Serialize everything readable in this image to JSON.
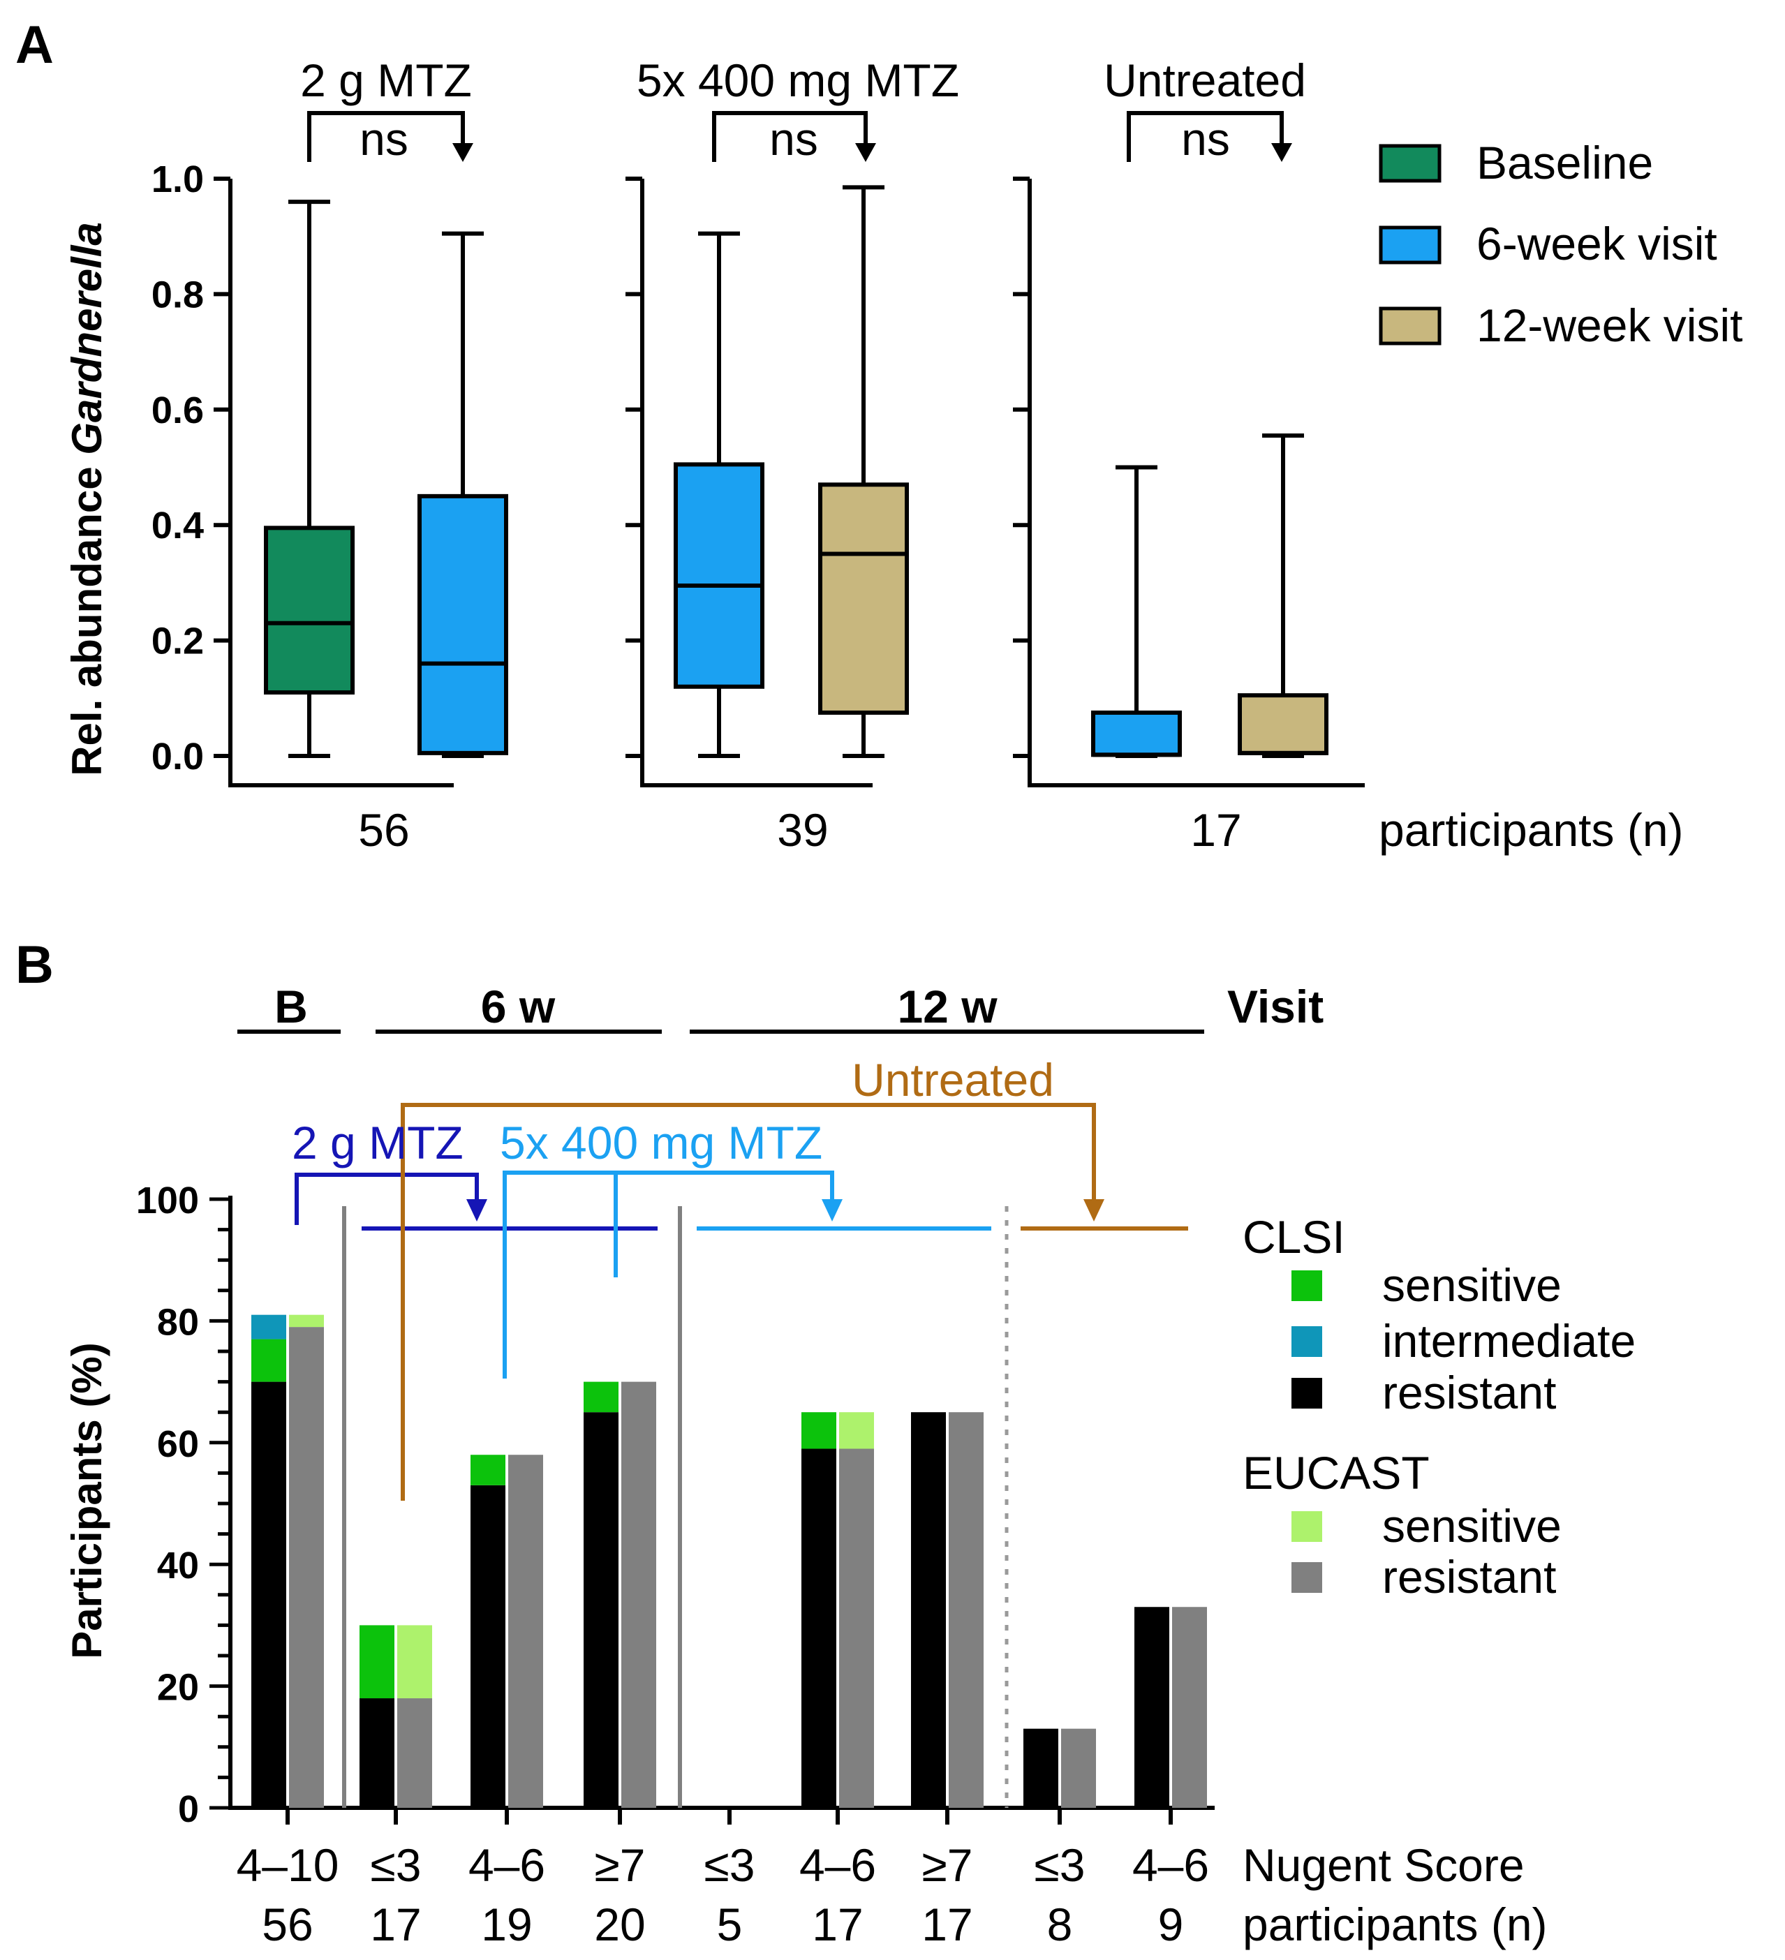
{
  "panel_a_label": "A",
  "panel_b_label": "B",
  "chart_data": [
    {
      "type": "box",
      "panel": "A",
      "ylabel_prefix": "Rel. abundance ",
      "ylabel_italic": "Gardnerella",
      "ylim": [
        0,
        1.0
      ],
      "yticks": [
        "0.0",
        "0.2",
        "0.4",
        "0.6",
        "0.8",
        "1.0"
      ],
      "groups": [
        {
          "title": "2 g MTZ",
          "comparison": "ns",
          "n": "56",
          "boxes": [
            {
              "series": "Baseline",
              "min": 0.0,
              "q1": 0.11,
              "median": 0.23,
              "q3": 0.395,
              "max": 0.96
            },
            {
              "series": "6-week visit",
              "min": 0.0,
              "q1": 0.005,
              "median": 0.16,
              "q3": 0.45,
              "max": 0.905
            }
          ]
        },
        {
          "title": "5x 400 mg MTZ",
          "comparison": "ns",
          "n": "39",
          "boxes": [
            {
              "series": "6-week visit",
              "min": 0.0,
              "q1": 0.12,
              "median": 0.295,
              "q3": 0.505,
              "max": 0.905
            },
            {
              "series": "12-week visit",
              "min": 0.0,
              "q1": 0.075,
              "median": 0.35,
              "q3": 0.47,
              "max": 0.985
            }
          ]
        },
        {
          "title": "Untreated",
          "comparison": "ns",
          "n": "17",
          "boxes": [
            {
              "series": "6-week visit",
              "min": 0.0,
              "q1": 0.002,
              "median": 0.002,
              "q3": 0.075,
              "max": 0.5
            },
            {
              "series": "12-week visit",
              "min": 0.0,
              "q1": 0.005,
              "median": 0.005,
              "q3": 0.105,
              "max": 0.555
            }
          ]
        }
      ],
      "n_label": "participants (n)",
      "legend": [
        {
          "name": "Baseline",
          "color": "#128a5c"
        },
        {
          "name": "6-week visit",
          "color": "#1ba1f2"
        },
        {
          "name": "12-week visit",
          "color": "#c8b77e"
        }
      ]
    },
    {
      "type": "bar",
      "panel": "B",
      "ylabel": "Participants (%)",
      "ylim": [
        0,
        100
      ],
      "yticks": [
        "0",
        "20",
        "40",
        "60",
        "80",
        "100"
      ],
      "visits": [
        {
          "label": "B"
        },
        {
          "label": "6 w"
        },
        {
          "label": "12 w"
        }
      ],
      "visit_title": "Visit",
      "treatments": [
        {
          "name": "2 g MTZ",
          "color": "#1515b5"
        },
        {
          "name": "5x 400 mg MTZ",
          "color": "#1ba1f2"
        },
        {
          "name": "Untreated",
          "color": "#b06b14"
        }
      ],
      "categories": [
        {
          "nugent": "4–10",
          "n": "56",
          "clsi": {
            "resistant": 70,
            "sensitive": 7,
            "intermediate": 4
          },
          "eucast": {
            "resistant": 79,
            "sensitive": 2
          }
        },
        {
          "nugent": "≤3",
          "n": "17",
          "clsi": {
            "resistant": 18,
            "sensitive": 12,
            "intermediate": 0
          },
          "eucast": {
            "resistant": 18,
            "sensitive": 12
          }
        },
        {
          "nugent": "4–6",
          "n": "19",
          "clsi": {
            "resistant": 53,
            "sensitive": 5,
            "intermediate": 0
          },
          "eucast": {
            "resistant": 58,
            "sensitive": 0
          }
        },
        {
          "nugent": "≥7",
          "n": "20",
          "clsi": {
            "resistant": 65,
            "sensitive": 5,
            "intermediate": 0
          },
          "eucast": {
            "resistant": 70,
            "sensitive": 0
          }
        },
        {
          "nugent": "≤3",
          "n": "5",
          "clsi": {
            "resistant": 0,
            "sensitive": 0,
            "intermediate": 0
          },
          "eucast": {
            "resistant": 0,
            "sensitive": 0
          }
        },
        {
          "nugent": "4–6",
          "n": "17",
          "clsi": {
            "resistant": 59,
            "sensitive": 6,
            "intermediate": 0
          },
          "eucast": {
            "resistant": 59,
            "sensitive": 6
          }
        },
        {
          "nugent": "≥7",
          "n": "17",
          "clsi": {
            "resistant": 65,
            "sensitive": 0,
            "intermediate": 0
          },
          "eucast": {
            "resistant": 65,
            "sensitive": 0
          }
        },
        {
          "nugent": "≤3",
          "n": "8",
          "clsi": {
            "resistant": 13,
            "sensitive": 0,
            "intermediate": 0
          },
          "eucast": {
            "resistant": 13,
            "sensitive": 0
          }
        },
        {
          "nugent": "4–6",
          "n": "9",
          "clsi": {
            "resistant": 33,
            "sensitive": 0,
            "intermediate": 0
          },
          "eucast": {
            "resistant": 33,
            "sensitive": 0
          }
        }
      ],
      "x_row1_label": "Nugent Score",
      "x_row2_label": "participants (n)",
      "legend": {
        "clsi_title": "CLSI",
        "clsi": [
          {
            "name": "sensitive",
            "color": "#0cc20c"
          },
          {
            "name": "intermediate",
            "color": "#0f96b9"
          },
          {
            "name": "resistant",
            "color": "#000000"
          }
        ],
        "eucast_title": "EUCAST",
        "eucast": [
          {
            "name": "sensitive",
            "color": "#adf26c"
          },
          {
            "name": "resistant",
            "color": "#808080"
          }
        ]
      }
    }
  ]
}
